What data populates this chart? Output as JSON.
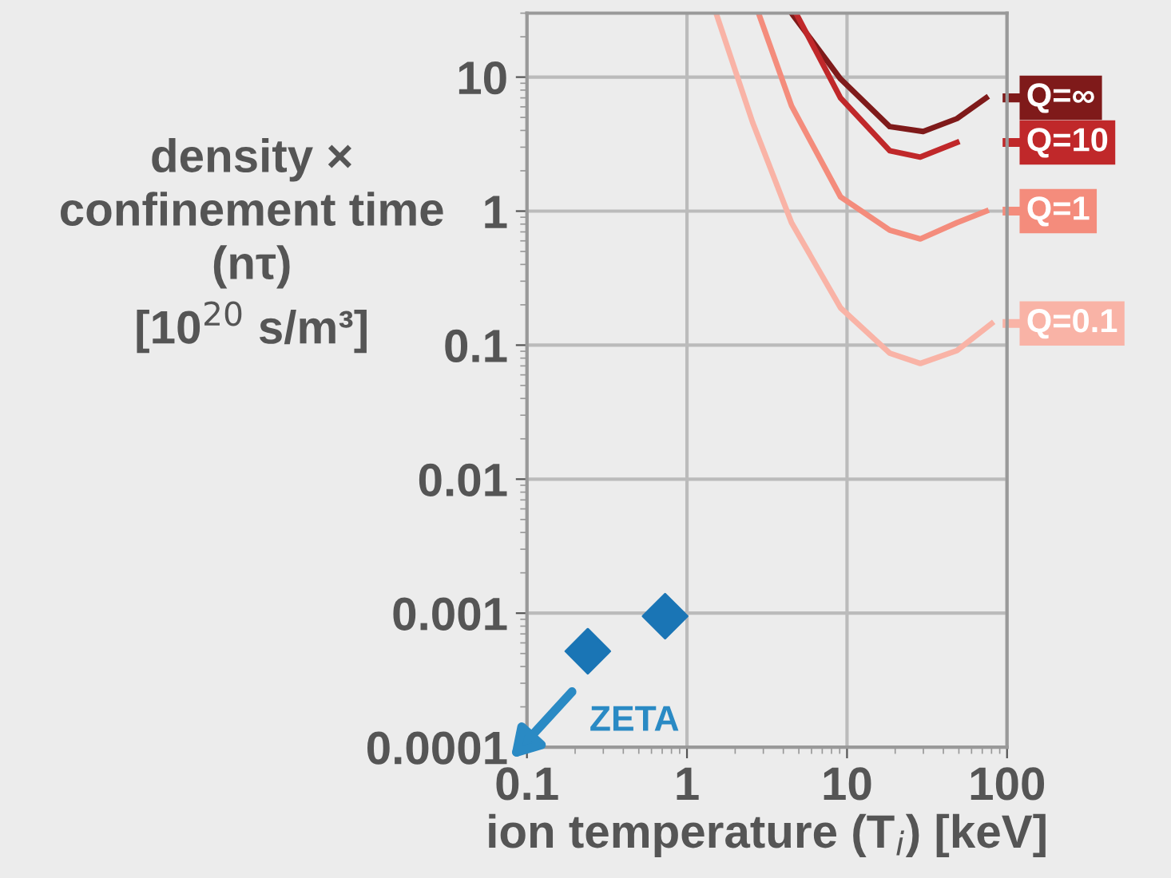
{
  "chart_data": {
    "type": "line",
    "xlabel": "ion temperature (T$_{i}$) [keV]",
    "ylabel": "density ×\nconfinement time\n(nτ)\n[10$^{20}$ s/m³]",
    "log": "xy",
    "grid": true,
    "xlim": [
      0.1,
      100
    ],
    "xticks": [
      0.1,
      1,
      10,
      100
    ],
    "ylim": [
      0.0001,
      30
    ],
    "yticks": [
      {
        "value": 0.0001,
        "label": "0.0001"
      },
      {
        "value": 0.001,
        "label": "0.001"
      },
      {
        "value": 0.01,
        "label": "0.01"
      },
      {
        "value": 0.1,
        "label": "0.1"
      },
      {
        "value": 1,
        "label": "1"
      },
      {
        "value": 10,
        "label": "10"
      }
    ],
    "series": [
      {
        "name": "Q=∞",
        "color": "#7f1a1a",
        "x": [
          4.5,
          9.1,
          18.5,
          29.9,
          48.6,
          74
        ],
        "values": [
          30,
          9.7,
          4.27,
          3.93,
          4.9,
          7.0
        ]
      },
      {
        "name": "Q=10",
        "color": "#c0282a",
        "x": [
          4.8,
          9.1,
          18.5,
          28.7,
          48.6
        ],
        "values": [
          30,
          7.0,
          2.82,
          2.53,
          3.25
        ]
      },
      {
        "name": "Q=1",
        "color": "#f48c7c",
        "x": [
          2.8,
          4.5,
          9.1,
          18.5,
          28.7,
          48.6,
          74
        ],
        "values": [
          30,
          6.1,
          1.28,
          0.72,
          0.62,
          0.82,
          1.0
        ]
      },
      {
        "name": "Q=0.1",
        "color": "#f9b3a6",
        "x": [
          1.52,
          2.57,
          4.5,
          9.1,
          18.5,
          28.7,
          48.6,
          80
        ],
        "values": [
          30,
          4.6,
          0.82,
          0.19,
          0.087,
          0.073,
          0.091,
          0.145
        ]
      },
      {
        "type": "scatter",
        "marker": "diamond",
        "color": "#1a75b5",
        "x": [
          0.73,
          0.24
        ],
        "values": [
          0.00095,
          0.00052
        ]
      }
    ],
    "legend": "right",
    "annotations": [
      "ZETA"
    ]
  }
}
